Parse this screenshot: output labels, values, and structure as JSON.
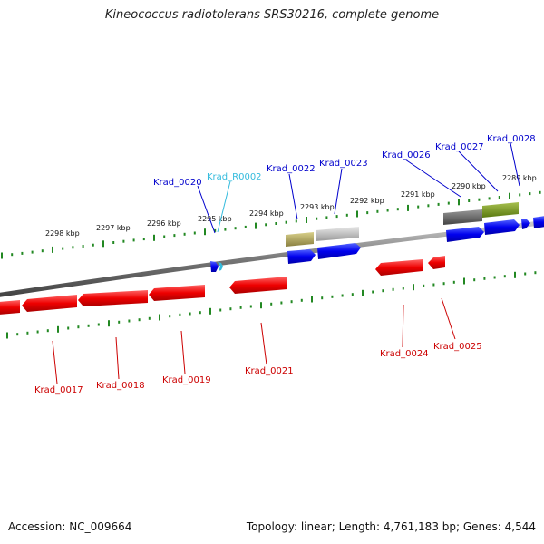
{
  "title": "Kineococcus radiotolerans SRS30216, complete genome",
  "footer": {
    "accession": "Accession: NC_009664",
    "summary": "Topology: linear; Length: 4,761,183 bp; Genes: 4,544"
  },
  "scale_labels": [
    "2298 kbp",
    "2297 kbp",
    "2296 kbp",
    "2295 kbp",
    "2294 kbp",
    "2293 kbp",
    "2292 kbp",
    "2291 kbp",
    "2290 kbp",
    "2289 kbp"
  ],
  "top_genes": [
    {
      "name": "Krad_0020",
      "color": "#0000cc"
    },
    {
      "name": "Krad_R0002",
      "color": "#33bbdd"
    },
    {
      "name": "Krad_0022",
      "color": "#0000cc"
    },
    {
      "name": "Krad_0023",
      "color": "#0000cc"
    },
    {
      "name": "Krad_0026",
      "color": "#0000cc"
    },
    {
      "name": "Krad_0027",
      "color": "#0000cc"
    },
    {
      "name": "Krad_0028",
      "color": "#0000cc"
    }
  ],
  "bottom_genes": [
    {
      "name": "Krad_0017",
      "color": "#cc0000"
    },
    {
      "name": "Krad_0018",
      "color": "#cc0000"
    },
    {
      "name": "Krad_0019",
      "color": "#cc0000"
    },
    {
      "name": "Krad_0021",
      "color": "#cc0000"
    },
    {
      "name": "Krad_0024",
      "color": "#cc0000"
    },
    {
      "name": "Krad_0025",
      "color": "#cc0000"
    }
  ],
  "colors": {
    "forward": "#0000ee",
    "reverse": "#ee0000",
    "ticks": "#228822",
    "backbone": "#777777"
  }
}
